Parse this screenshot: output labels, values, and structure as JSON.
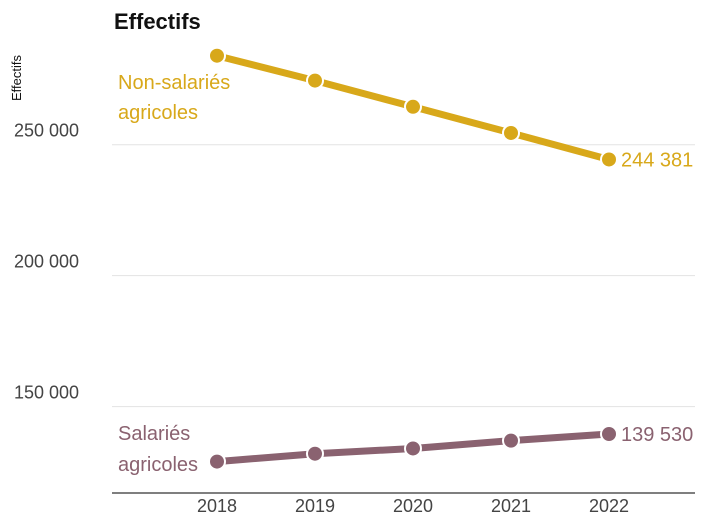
{
  "chart_data": {
    "type": "line",
    "title": "Effectifs",
    "ylabel": "Effectifs",
    "xlabel": "",
    "x": [
      "2018",
      "2019",
      "2020",
      "2021",
      "2022"
    ],
    "ylim": [
      117000,
      290000
    ],
    "yticks": [
      "150 000",
      "200 000",
      "250 000"
    ],
    "ytick_values": [
      150000,
      200000,
      250000
    ],
    "grid": true,
    "series": [
      {
        "name_lines": [
          "Non-salariés",
          "agricoles"
        ],
        "color": "#d8a81a",
        "values": [
          284000,
          274500,
          264500,
          254500,
          244381
        ],
        "end_label": "244 381"
      },
      {
        "name_lines": [
          "Salariés",
          "agricoles"
        ],
        "color": "#8a6270",
        "values": [
          129000,
          132000,
          134000,
          137000,
          139530
        ],
        "end_label": "139 530"
      }
    ]
  }
}
